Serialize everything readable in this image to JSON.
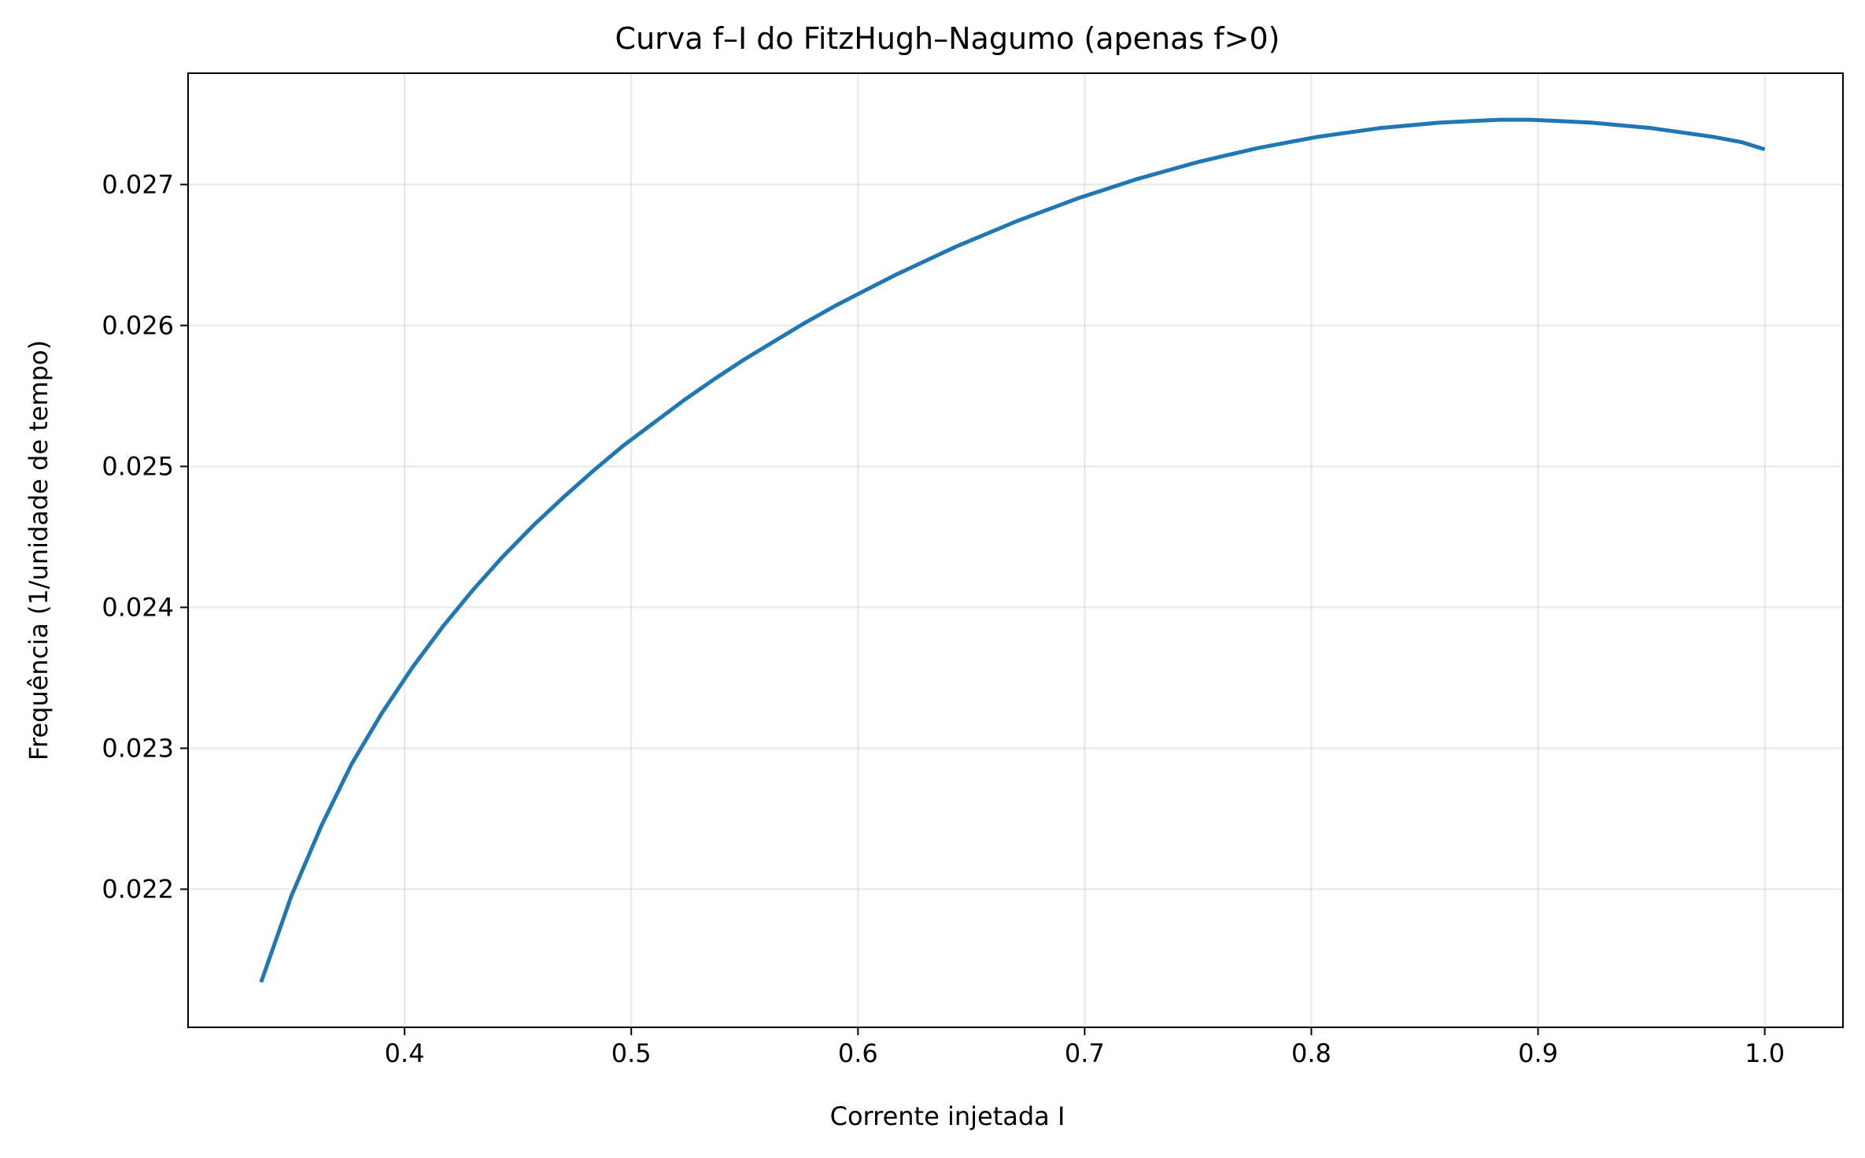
{
  "chart_data": {
    "type": "line",
    "title": "Curva f–I do FitzHugh–Nagumo (apenas f>0)",
    "xlabel": "Corrente injetada I",
    "ylabel": "Frequência (1/unidade de tempo)",
    "xlim": [
      0.3045,
      1.0345
    ],
    "ylim": [
      0.02102,
      0.02779
    ],
    "xticks": [
      0.4,
      0.5,
      0.6,
      0.7,
      0.8,
      0.9,
      1.0
    ],
    "xtick_labels": [
      "0.4",
      "0.5",
      "0.6",
      "0.7",
      "0.8",
      "0.9",
      "1.0"
    ],
    "yticks": [
      0.022,
      0.023,
      0.024,
      0.025,
      0.026,
      0.027
    ],
    "ytick_labels": [
      "0.022",
      "0.023",
      "0.024",
      "0.025",
      "0.026",
      "0.027"
    ],
    "grid": true,
    "series": [
      {
        "color": "#1f77b4",
        "x": [
          0.3367,
          0.35,
          0.3633,
          0.3767,
          0.39,
          0.4033,
          0.4167,
          0.43,
          0.4433,
          0.4567,
          0.47,
          0.4833,
          0.4967,
          0.51,
          0.5233,
          0.5367,
          0.55,
          0.5633,
          0.5767,
          0.59,
          0.6033,
          0.6167,
          0.63,
          0.6433,
          0.6567,
          0.67,
          0.6833,
          0.6967,
          0.71,
          0.7233,
          0.7367,
          0.75,
          0.7633,
          0.7767,
          0.79,
          0.8033,
          0.8167,
          0.83,
          0.8433,
          0.8567,
          0.87,
          0.8833,
          0.8967,
          0.91,
          0.9233,
          0.9367,
          0.95,
          0.9633,
          0.9767,
          0.99,
          1.0
        ],
        "y": [
          0.02134,
          0.02195,
          0.02245,
          0.02289,
          0.02325,
          0.02357,
          0.02386,
          0.02412,
          0.02436,
          0.02458,
          0.02478,
          0.02497,
          0.02515,
          0.02531,
          0.02547,
          0.02562,
          0.02576,
          0.02589,
          0.02602,
          0.02614,
          0.02625,
          0.02636,
          0.02646,
          0.02656,
          0.02665,
          0.02674,
          0.02682,
          0.0269,
          0.02697,
          0.02704,
          0.0271,
          0.02716,
          0.02721,
          0.02726,
          0.0273,
          0.02734,
          0.02737,
          0.0274,
          0.02742,
          0.02744,
          0.02745,
          0.02746,
          0.02746,
          0.02745,
          0.02744,
          0.02742,
          0.0274,
          0.02737,
          0.02734,
          0.0273,
          0.02725
        ]
      }
    ]
  }
}
